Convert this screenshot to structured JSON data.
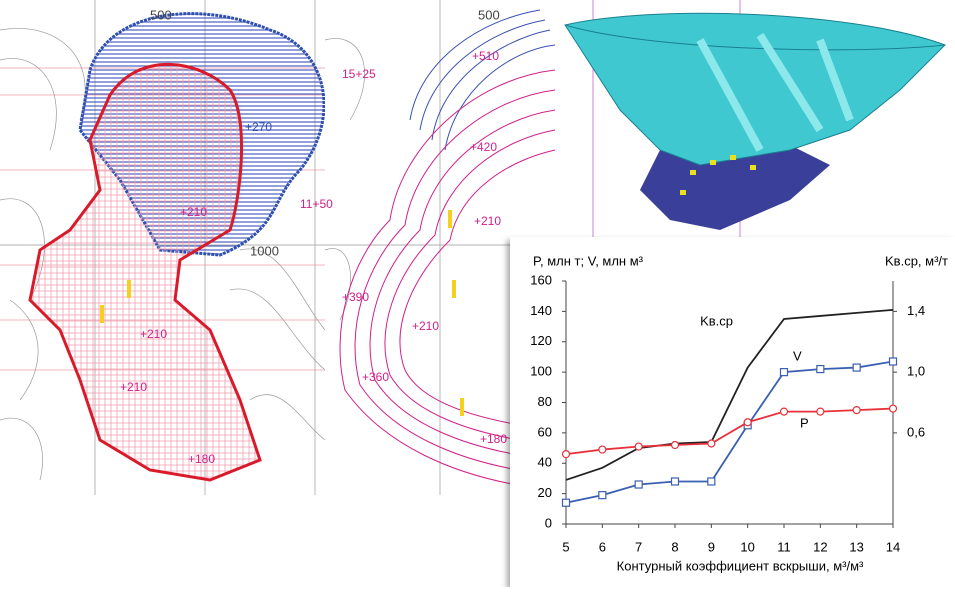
{
  "map_labels": [
    "500",
    "+270",
    "11+50",
    "1000",
    "+210",
    "+210",
    "+210",
    "+180",
    "500",
    "+510",
    "15+25",
    "+420",
    "+210",
    "+390",
    "+210",
    "+360",
    "+180"
  ],
  "chart_data": {
    "type": "line",
    "y_label": "P, млн т; V, млн м³",
    "y2_label": "Kв.ср, м³/т",
    "x_label": "Контурный коэффициент вскрыши, м³/м³",
    "x": [
      5,
      6,
      7,
      8,
      9,
      10,
      11,
      12,
      13,
      14
    ],
    "xlim": [
      5,
      14
    ],
    "xticks": [
      5,
      6,
      7,
      8,
      9,
      10,
      11,
      12,
      13,
      14
    ],
    "ylim": [
      0,
      160
    ],
    "yticks": [
      0,
      20,
      40,
      60,
      80,
      100,
      120,
      140,
      160
    ],
    "y2lim": [
      0,
      1.6
    ],
    "y2ticks": [
      {
        "value": 0.6,
        "label": "0,6"
      },
      {
        "value": 1.0,
        "label": "1,0"
      },
      {
        "value": 1.4,
        "label": "1,4"
      }
    ],
    "grid": false,
    "series": [
      {
        "name": "Kв.ср",
        "color": "#222222",
        "axis": "y2",
        "values": [
          0.29,
          0.37,
          0.5,
          0.53,
          0.54,
          1.03,
          1.35,
          1.37,
          1.39,
          1.41
        ]
      },
      {
        "name": "V",
        "color": "#3a5fb0",
        "marker": "square",
        "values": [
          14,
          19,
          26,
          28,
          28,
          65,
          100,
          102,
          103,
          107
        ]
      },
      {
        "name": "P",
        "color": "#e8303a",
        "marker": "circle",
        "values": [
          46,
          49,
          51,
          52,
          53,
          67,
          74,
          74,
          75,
          76
        ]
      }
    ]
  }
}
